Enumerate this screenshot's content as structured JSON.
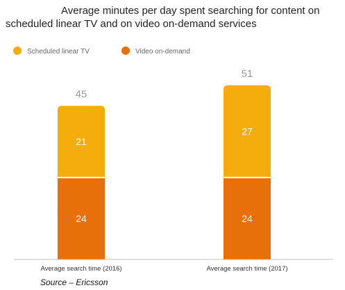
{
  "chart_data": {
    "type": "bar",
    "stacked": true,
    "title_lines": [
      "Average minutes per day spent searching for content on",
      "scheduled linear TV and on video on-demand services"
    ],
    "categories": [
      "Average search time (2016)",
      "Average search time (2017)"
    ],
    "series": [
      {
        "name": "Video on-demand",
        "values": [
          24,
          24
        ],
        "color": "#e8700a"
      },
      {
        "name": "Scheduled linear TV",
        "values": [
          21,
          27
        ],
        "color": "#f5ad0d"
      }
    ],
    "totals": [
      45,
      51
    ],
    "legend": {
      "placement": "top-left",
      "items": [
        "Scheduled linear TV",
        "Video on-demand"
      ]
    },
    "ylim": [
      0,
      51
    ],
    "grid": false
  },
  "source": "Source – Ericsson"
}
